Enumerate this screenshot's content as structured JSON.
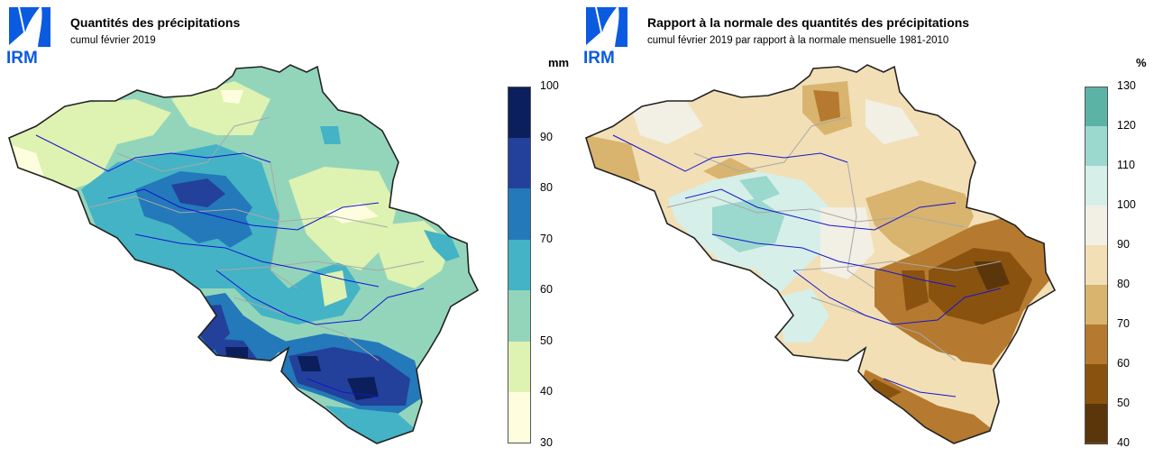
{
  "logo": {
    "text": "IRM",
    "color": "#0a5be0"
  },
  "panels": {
    "precip": {
      "title": "Quantités des précipitations",
      "subtitle": "cumul février 2019",
      "unit": "mm",
      "ticks": [
        "100",
        "90",
        "80",
        "70",
        "60",
        "50",
        "40",
        "30"
      ],
      "colors": [
        "#0b1f5c",
        "#23419a",
        "#2379b9",
        "#44b3c6",
        "#93d5bb",
        "#def2b1",
        "#fefedf"
      ]
    },
    "ratio": {
      "title": "Rapport à la normale des quantités des précipitations",
      "subtitle": "cumul février 2019 par rapport à la normale mensuelle 1981-2010",
      "unit": "%",
      "ticks": [
        "130",
        "120",
        "110",
        "100",
        "90",
        "80",
        "70",
        "60",
        "50",
        "40"
      ],
      "colors": [
        "#5bb3a6",
        "#9bd8cd",
        "#d6efe9",
        "#f2efe5",
        "#f2dfb6",
        "#d9b46e",
        "#b57a2f",
        "#8a520f",
        "#5b360a"
      ]
    }
  }
}
